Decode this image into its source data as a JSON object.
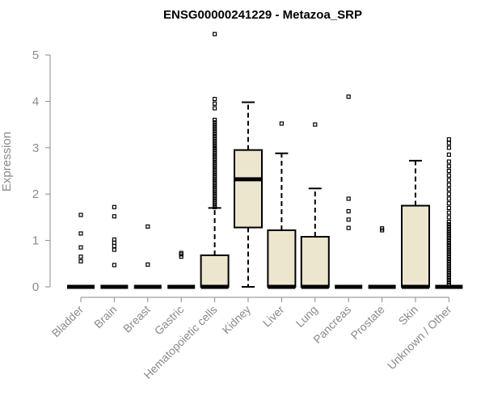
{
  "chart_data": {
    "type": "boxplot",
    "title": "ENSG00000241229 - Metazoa_SRP",
    "ylabel": "Expression",
    "xlabel": "",
    "ylim": [
      0,
      5.5
    ],
    "yticks": [
      0,
      1,
      2,
      3,
      4,
      5
    ],
    "grid": false,
    "box_fill": "#ede6cf",
    "categories": [
      "Bladder",
      "Brain",
      "Breast",
      "Gastric",
      "Hematopoietic cells",
      "Kidney",
      "Liver",
      "Lung",
      "Pancreas",
      "Prostate",
      "Skin",
      "Unknown / Other"
    ],
    "boxes": [
      {
        "q1": 0,
        "median": 0,
        "q3": 0,
        "whisker_low": 0,
        "whisker_high": 0,
        "outliers": [
          0.55,
          0.65,
          0.85,
          1.15,
          1.55
        ]
      },
      {
        "q1": 0,
        "median": 0,
        "q3": 0,
        "whisker_low": 0,
        "whisker_high": 0,
        "outliers": [
          0.47,
          0.8,
          0.88,
          0.95,
          1.02,
          1.52,
          1.72
        ]
      },
      {
        "q1": 0,
        "median": 0,
        "q3": 0,
        "whisker_low": 0,
        "whisker_high": 0,
        "outliers": [
          0.48,
          1.3
        ]
      },
      {
        "q1": 0,
        "median": 0,
        "q3": 0,
        "whisker_low": 0,
        "whisker_high": 0,
        "outliers": [
          0.65,
          0.7,
          0.73
        ]
      },
      {
        "q1": 0,
        "median": 0,
        "q3": 0.68,
        "whisker_low": 0,
        "whisker_high": 1.7,
        "outliers": [
          1.72,
          1.76,
          1.8,
          1.84,
          1.88,
          1.92,
          1.96,
          2.0,
          2.04,
          2.08,
          2.12,
          2.16,
          2.2,
          2.24,
          2.28,
          2.32,
          2.36,
          2.4,
          2.44,
          2.48,
          2.52,
          2.56,
          2.6,
          2.64,
          2.68,
          2.72,
          2.76,
          2.8,
          2.84,
          2.88,
          2.92,
          2.96,
          3.0,
          3.05,
          3.1,
          3.15,
          3.2,
          3.25,
          3.3,
          3.35,
          3.4,
          3.45,
          3.5,
          3.55,
          3.6,
          3.85,
          3.95,
          4.05,
          5.45
        ]
      },
      {
        "q1": 1.28,
        "median": 2.32,
        "q3": 2.95,
        "whisker_low": 0,
        "whisker_high": 3.98,
        "outliers": []
      },
      {
        "q1": 0,
        "median": 0,
        "q3": 1.22,
        "whisker_low": 0,
        "whisker_high": 2.88,
        "outliers": [
          3.52
        ]
      },
      {
        "q1": 0,
        "median": 0,
        "q3": 1.08,
        "whisker_low": 0,
        "whisker_high": 2.12,
        "outliers": [
          3.5
        ]
      },
      {
        "q1": 0,
        "median": 0,
        "q3": 0,
        "whisker_low": 0,
        "whisker_high": 0,
        "outliers": [
          1.27,
          1.45,
          1.63,
          1.9,
          4.1
        ]
      },
      {
        "q1": 0,
        "median": 0,
        "q3": 0,
        "whisker_low": 0,
        "whisker_high": 0,
        "outliers": [
          1.22,
          1.26
        ]
      },
      {
        "q1": 0,
        "median": 0,
        "q3": 1.75,
        "whisker_low": 0,
        "whisker_high": 2.72,
        "outliers": []
      },
      {
        "q1": 0,
        "median": 0,
        "q3": 0,
        "whisker_low": 0,
        "whisker_high": 0,
        "outliers": [
          0.05,
          0.1,
          0.15,
          0.2,
          0.25,
          0.3,
          0.35,
          0.4,
          0.45,
          0.5,
          0.55,
          0.6,
          0.65,
          0.7,
          0.75,
          0.8,
          0.85,
          0.9,
          0.95,
          1.0,
          1.05,
          1.1,
          1.15,
          1.2,
          1.25,
          1.3,
          1.35,
          1.4,
          1.5,
          1.6,
          1.7,
          1.8,
          1.9,
          2.0,
          2.1,
          2.2,
          2.3,
          2.4,
          2.5,
          2.6,
          2.7,
          2.85,
          3.0,
          3.1,
          3.18
        ]
      }
    ]
  }
}
